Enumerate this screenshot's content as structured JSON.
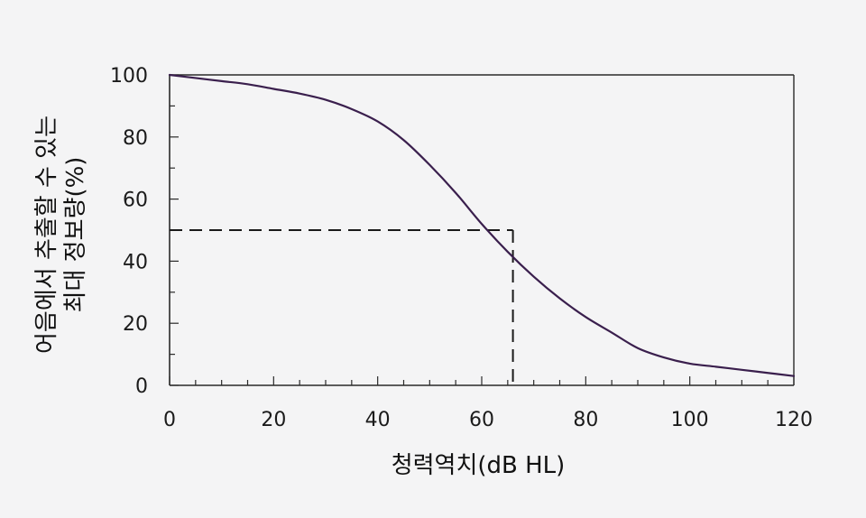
{
  "chart_data": {
    "type": "line",
    "xlabel": "청력역치(dB HL)",
    "ylabel_lines": [
      "어음에서 추출할 수 있는",
      "최대 정보량(%)"
    ],
    "xlim": [
      0,
      120
    ],
    "ylim": [
      0,
      100
    ],
    "x_ticks": [
      0,
      20,
      40,
      60,
      80,
      100,
      120
    ],
    "x_minor_step": 5,
    "y_ticks": [
      0,
      20,
      40,
      60,
      80,
      100
    ],
    "y_minor_step": 10,
    "grid": false,
    "line_color": "#3a1f4d",
    "series": [
      {
        "x": [
          0,
          5,
          10,
          15,
          20,
          25,
          30,
          35,
          40,
          45,
          50,
          55,
          60,
          65,
          70,
          75,
          80,
          85,
          90,
          95,
          100,
          105,
          110,
          115,
          120
        ],
        "y": [
          100,
          99,
          98,
          97,
          95.5,
          94,
          92,
          89,
          85,
          79,
          71,
          62,
          52,
          43,
          35,
          28,
          22,
          17,
          12,
          9,
          7,
          6,
          5,
          4,
          3
        ]
      }
    ],
    "annotation": {
      "style": "dashed",
      "x": 66,
      "y": 50
    }
  }
}
